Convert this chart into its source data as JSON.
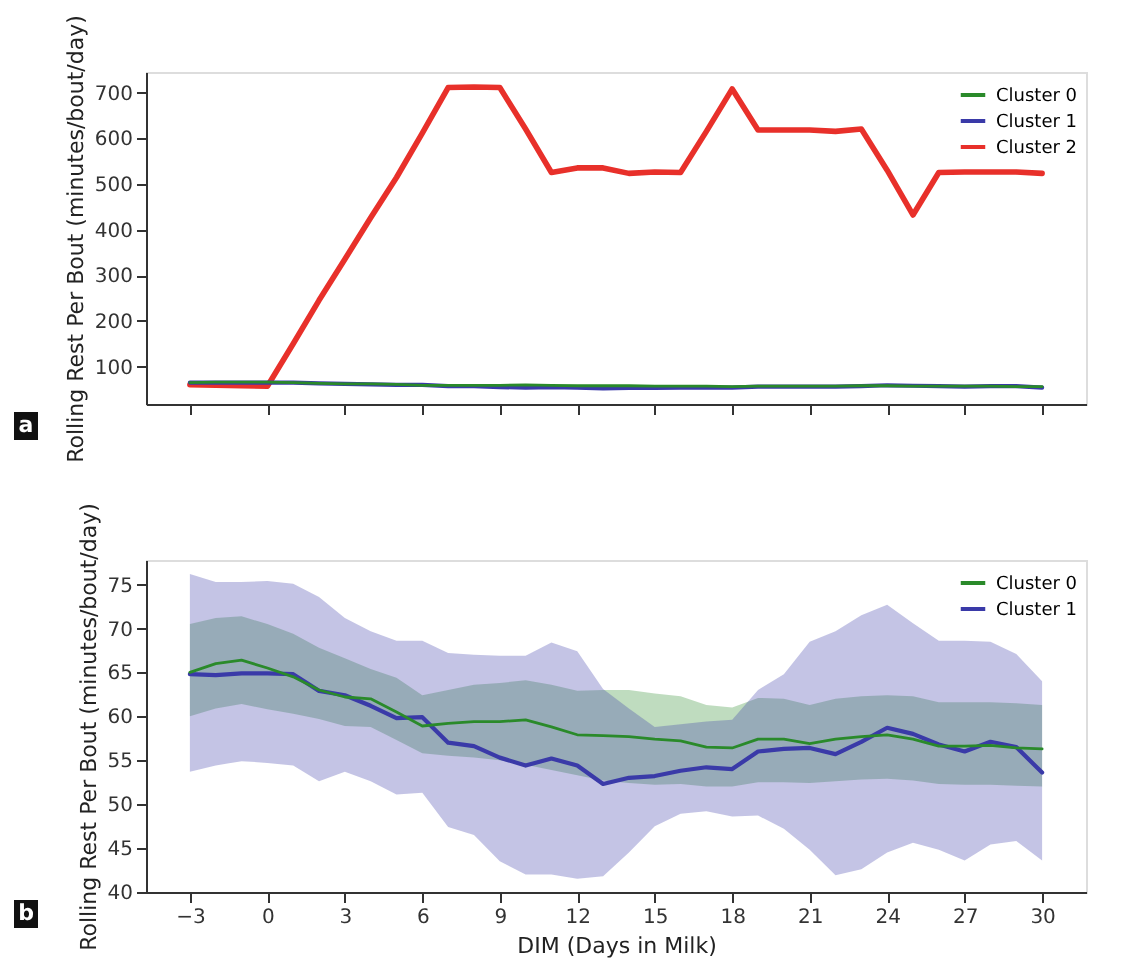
{
  "chart_data": [
    {
      "type": "line",
      "ylabel": "Rolling Rest Per Bout (minutes/bout/day)",
      "annotations": [
        "a"
      ],
      "x": [
        -3,
        -2,
        -1,
        0,
        1,
        2,
        3,
        4,
        5,
        6,
        7,
        8,
        9,
        10,
        11,
        12,
        13,
        14,
        15,
        16,
        17,
        18,
        19,
        20,
        21,
        22,
        23,
        24,
        25,
        26,
        27,
        28,
        29,
        30
      ],
      "xlim": [
        -4.7,
        31.7
      ],
      "xticks": [
        -3,
        0,
        3,
        6,
        9,
        12,
        15,
        18,
        21,
        24,
        27,
        30
      ],
      "ylim": [
        18,
        745
      ],
      "yticks": [
        100,
        200,
        300,
        400,
        500,
        600,
        700
      ],
      "tick_labels": "y",
      "legend": "top right",
      "series": [
        {
          "name": "Cluster 0",
          "color": "#2a8a2a",
          "values": [
            65,
            66,
            66,
            66,
            65,
            63,
            62,
            62,
            61,
            59,
            59,
            59,
            59,
            60,
            59,
            58,
            58,
            58,
            57,
            57,
            57,
            56,
            57,
            57,
            57,
            57,
            58,
            58,
            57,
            57,
            57,
            57,
            56,
            56
          ]
        },
        {
          "name": "Cluster 1",
          "color": "#3a3aa8",
          "values": [
            65,
            65,
            65,
            65,
            65,
            63,
            62,
            61,
            60,
            60,
            57,
            57,
            55,
            54,
            55,
            54,
            52,
            53,
            53,
            54,
            54,
            54,
            56,
            56,
            56,
            56,
            57,
            59,
            58,
            57,
            56,
            57,
            57,
            54
          ]
        },
        {
          "name": "Cluster 2",
          "color": "#e8302a",
          "values": [
            60,
            59,
            58,
            57,
            150,
            245,
            335,
            426,
            514,
            611,
            711,
            712,
            711,
            620,
            525,
            535,
            535,
            523,
            526,
            525,
            615,
            708,
            618,
            618,
            618,
            615,
            620,
            530,
            432,
            525,
            526,
            526,
            526,
            523
          ]
        }
      ]
    },
    {
      "type": "line",
      "xlabel": "DIM (Days in Milk)",
      "ylabel": "Rolling Rest Per Bout (minutes/bout/day)",
      "annotations": [
        "b"
      ],
      "x": [
        -3,
        -2,
        -1,
        0,
        1,
        2,
        3,
        4,
        5,
        6,
        7,
        8,
        9,
        10,
        11,
        12,
        13,
        14,
        15,
        16,
        17,
        18,
        19,
        20,
        21,
        22,
        23,
        24,
        25,
        26,
        27,
        28,
        29,
        30
      ],
      "xlim": [
        -4.7,
        31.7
      ],
      "xticks": [
        -3,
        0,
        3,
        6,
        9,
        12,
        15,
        18,
        21,
        24,
        27,
        30
      ],
      "ylim": [
        40,
        77.8
      ],
      "yticks": [
        40,
        45,
        50,
        55,
        60,
        65,
        70,
        75
      ],
      "legend": "top right",
      "series": [
        {
          "name": "Cluster 0",
          "color": "#2a8a2a",
          "values": [
            65,
            66,
            66.4,
            65.5,
            64.5,
            63,
            62.2,
            62,
            60.5,
            58.9,
            59.2,
            59.4,
            59.4,
            59.6,
            58.8,
            57.9,
            57.8,
            57.7,
            57.4,
            57.2,
            56.5,
            56.4,
            57.4,
            57.4,
            56.9,
            57.4,
            57.7,
            57.9,
            57.4,
            56.6,
            56.6,
            56.7,
            56.4,
            56.3
          ],
          "upper": [
            70.5,
            71.2,
            71.4,
            70.5,
            69.4,
            67.8,
            66.6,
            65.4,
            64.4,
            62.4,
            63,
            63.6,
            63.8,
            64.1,
            63.6,
            62.9,
            63,
            63,
            62.6,
            62.3,
            61.3,
            61,
            62.1,
            62,
            61.3,
            62,
            62.3,
            62.4,
            62.3,
            61.6,
            61.6,
            61.6,
            61.5,
            61.3
          ],
          "lower": [
            60,
            60.9,
            61.4,
            60.8,
            60.3,
            59.7,
            58.9,
            58.8,
            57.3,
            55.8,
            55.5,
            55.3,
            55,
            54.5,
            53.9,
            53.3,
            52.7,
            52.4,
            52.2,
            52.3,
            52,
            52,
            52.5,
            52.5,
            52.4,
            52.6,
            52.8,
            52.9,
            52.7,
            52.3,
            52.2,
            52.2,
            52.1,
            52
          ]
        },
        {
          "name": "Cluster 1",
          "color": "#3a3aa8",
          "values": [
            64.8,
            64.7,
            64.9,
            64.9,
            64.8,
            62.9,
            62.4,
            61.2,
            59.8,
            59.9,
            57,
            56.6,
            55.3,
            54.4,
            55.2,
            54.4,
            52.3,
            53,
            53.2,
            53.8,
            54.2,
            54,
            56,
            56.3,
            56.4,
            55.7,
            57.1,
            58.7,
            58,
            56.8,
            56,
            57.1,
            56.5,
            53.6
          ],
          "upper": [
            76.2,
            75.3,
            75.3,
            75.4,
            75.1,
            73.6,
            71.2,
            69.7,
            68.6,
            68.6,
            67.2,
            67,
            66.9,
            66.9,
            68.4,
            67.4,
            63.1,
            60.9,
            58.8,
            59.1,
            59.4,
            59.6,
            63,
            64.8,
            68.5,
            69.7,
            71.5,
            72.7,
            70.6,
            68.6,
            68.6,
            68.5,
            67.1,
            64
          ],
          "lower": [
            53.7,
            54.4,
            54.9,
            54.7,
            54.4,
            52.6,
            53.7,
            52.6,
            51.1,
            51.3,
            47.4,
            46.5,
            43.5,
            42,
            42,
            41.5,
            41.8,
            44.5,
            47.5,
            48.9,
            49.2,
            48.6,
            48.7,
            47.2,
            44.8,
            41.9,
            42.6,
            44.5,
            45.6,
            44.8,
            43.6,
            45.4,
            45.8,
            43.6
          ]
        }
      ]
    }
  ]
}
